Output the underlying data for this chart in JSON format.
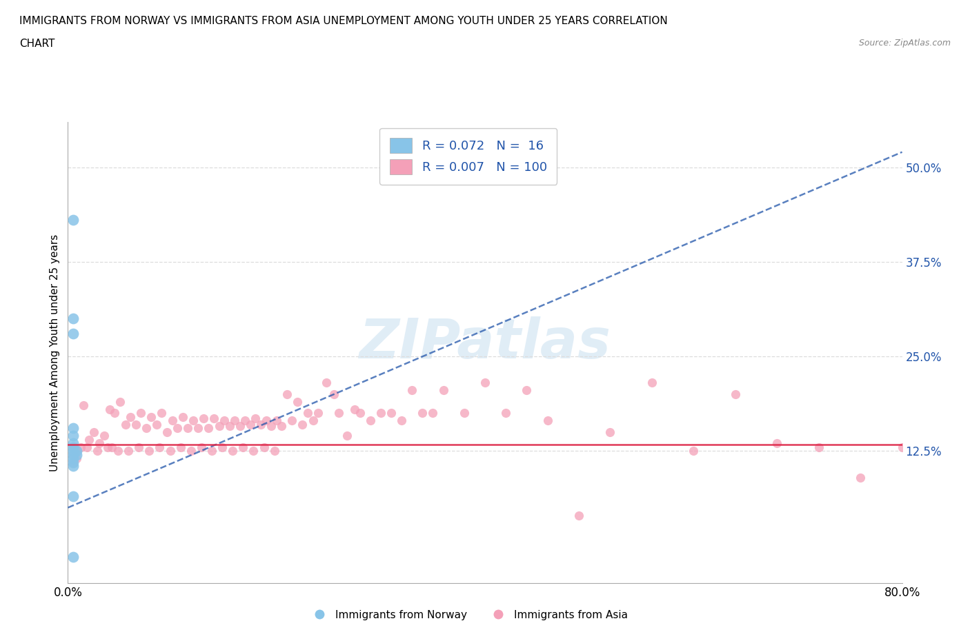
{
  "title_line1": "IMMIGRANTS FROM NORWAY VS IMMIGRANTS FROM ASIA UNEMPLOYMENT AMONG YOUTH UNDER 25 YEARS CORRELATION",
  "title_line2": "CHART",
  "source": "Source: ZipAtlas.com",
  "ylabel": "Unemployment Among Youth under 25 years",
  "watermark": "ZIPatlas",
  "xlim": [
    0.0,
    0.8
  ],
  "ylim": [
    -0.05,
    0.56
  ],
  "ytick_positions": [
    0.125,
    0.25,
    0.375,
    0.5
  ],
  "ytick_labels": [
    "12.5%",
    "25.0%",
    "37.5%",
    "50.0%"
  ],
  "norway_color": "#88c4e8",
  "asia_color": "#f4a0b8",
  "norway_line_color": "#2255aa",
  "asia_line_color": "#dd2244",
  "grid_color": "#dddddd",
  "R_norway": 0.072,
  "N_norway": 16,
  "R_asia": 0.007,
  "N_asia": 100,
  "norway_x": [
    0.005,
    0.005,
    0.005,
    0.005,
    0.005,
    0.005,
    0.005,
    0.005,
    0.005,
    0.005,
    0.005,
    0.005,
    0.008,
    0.008,
    0.005,
    0.005
  ],
  "norway_y": [
    0.43,
    0.3,
    0.28,
    0.155,
    0.145,
    0.135,
    0.13,
    0.125,
    0.12,
    0.115,
    0.11,
    0.105,
    0.125,
    0.12,
    0.065,
    -0.015
  ],
  "norway_line_x": [
    0.0,
    0.8
  ],
  "norway_line_y": [
    0.05,
    0.52
  ],
  "asia_line_x": [
    0.0,
    0.8
  ],
  "asia_line_y": [
    0.133,
    0.133
  ],
  "asia_x": [
    0.005,
    0.005,
    0.005,
    0.008,
    0.008,
    0.012,
    0.015,
    0.018,
    0.02,
    0.025,
    0.028,
    0.03,
    0.035,
    0.038,
    0.04,
    0.042,
    0.045,
    0.048,
    0.05,
    0.055,
    0.058,
    0.06,
    0.065,
    0.068,
    0.07,
    0.075,
    0.078,
    0.08,
    0.085,
    0.088,
    0.09,
    0.095,
    0.098,
    0.1,
    0.105,
    0.108,
    0.11,
    0.115,
    0.118,
    0.12,
    0.125,
    0.128,
    0.13,
    0.135,
    0.138,
    0.14,
    0.145,
    0.148,
    0.15,
    0.155,
    0.158,
    0.16,
    0.165,
    0.168,
    0.17,
    0.175,
    0.178,
    0.18,
    0.185,
    0.188,
    0.19,
    0.195,
    0.198,
    0.2,
    0.205,
    0.21,
    0.215,
    0.22,
    0.225,
    0.23,
    0.235,
    0.24,
    0.248,
    0.255,
    0.26,
    0.268,
    0.275,
    0.28,
    0.29,
    0.3,
    0.31,
    0.32,
    0.33,
    0.34,
    0.35,
    0.36,
    0.38,
    0.4,
    0.42,
    0.44,
    0.46,
    0.49,
    0.52,
    0.56,
    0.6,
    0.64,
    0.68,
    0.72,
    0.76,
    0.8
  ],
  "asia_y": [
    0.13,
    0.12,
    0.11,
    0.125,
    0.115,
    0.13,
    0.185,
    0.13,
    0.14,
    0.15,
    0.125,
    0.135,
    0.145,
    0.13,
    0.18,
    0.13,
    0.175,
    0.125,
    0.19,
    0.16,
    0.125,
    0.17,
    0.16,
    0.13,
    0.175,
    0.155,
    0.125,
    0.17,
    0.16,
    0.13,
    0.175,
    0.15,
    0.125,
    0.165,
    0.155,
    0.13,
    0.17,
    0.155,
    0.125,
    0.165,
    0.155,
    0.13,
    0.168,
    0.155,
    0.125,
    0.168,
    0.158,
    0.13,
    0.165,
    0.158,
    0.125,
    0.165,
    0.158,
    0.13,
    0.165,
    0.16,
    0.125,
    0.168,
    0.16,
    0.13,
    0.165,
    0.158,
    0.125,
    0.165,
    0.158,
    0.2,
    0.165,
    0.19,
    0.16,
    0.175,
    0.165,
    0.175,
    0.215,
    0.2,
    0.175,
    0.145,
    0.18,
    0.175,
    0.165,
    0.175,
    0.175,
    0.165,
    0.205,
    0.175,
    0.175,
    0.205,
    0.175,
    0.215,
    0.175,
    0.205,
    0.165,
    0.04,
    0.15,
    0.215,
    0.125,
    0.2,
    0.135,
    0.13,
    0.09,
    0.13
  ]
}
